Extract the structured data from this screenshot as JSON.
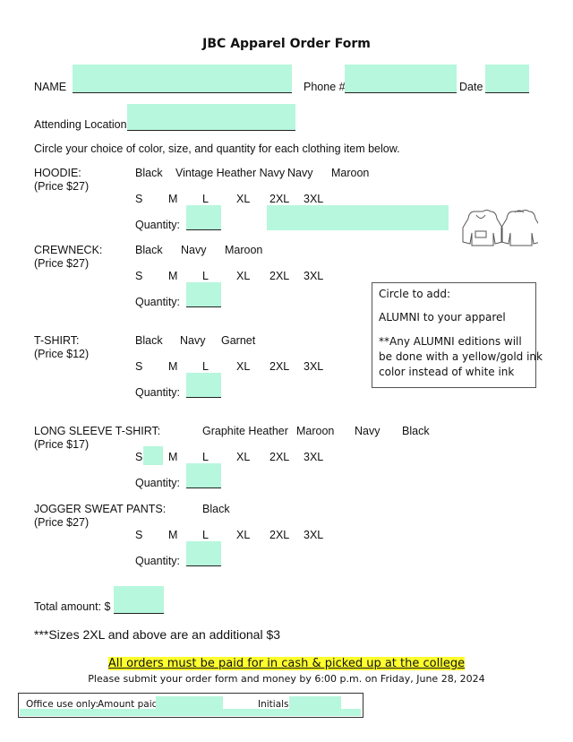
{
  "title": "JBC Apparel Order Form",
  "header": {
    "name_label": "NAME",
    "phone_label": "Phone #",
    "date_label": "Date",
    "location_label": "Attending Location:"
  },
  "instructions": "Circle your choice of color, size, and quantity for each clothing item below.",
  "sizes": [
    "S",
    "M",
    "L",
    "XL",
    "2XL",
    "3XL"
  ],
  "quantity_label": "Quantity:",
  "items": [
    {
      "name": "HOODIE:",
      "price": "(Price $27)",
      "colors": [
        "Black",
        "Vintage Heather Navy",
        "Navy",
        "Maroon"
      ]
    },
    {
      "name": "CREWNECK:",
      "price": "(Price $27)",
      "colors": [
        "Black",
        "Navy",
        "Maroon"
      ]
    },
    {
      "name": "T-SHIRT:",
      "price": "(Price $12)",
      "colors": [
        "Black",
        "Navy",
        "Garnet"
      ]
    },
    {
      "name": "LONG SLEEVE T-SHIRT:",
      "price": "(Price  $17)",
      "colors": [
        "Graphite Heather",
        "Maroon",
        "Navy",
        "Black"
      ]
    },
    {
      "name": "JOGGER SWEAT PANTS:",
      "price": "(Price  $27)",
      "colors": [
        "Black"
      ]
    }
  ],
  "alumni_box": {
    "line1": "Circle to add:",
    "line2": "ALUMNI to your apparel",
    "line3": "**Any ALUMNI editions will",
    "line4": "be done with a yellow/gold ink",
    "line5": "color instead of white ink"
  },
  "total_label": "Total amount: $",
  "size_note": "***Sizes 2XL and above are an additional $3",
  "payment_notice": "All orders must be paid for in cash & picked up at the college",
  "submit_notice": "Please submit your order form and money by 6:00 p.m. on Friday, June 28, 2024",
  "office": {
    "label": "Office use only:",
    "amount_label": "Amount paid:",
    "initials_label": "Initials:"
  },
  "colors": {
    "field": "#b7f7dd",
    "highlight": "#ffff2e"
  }
}
